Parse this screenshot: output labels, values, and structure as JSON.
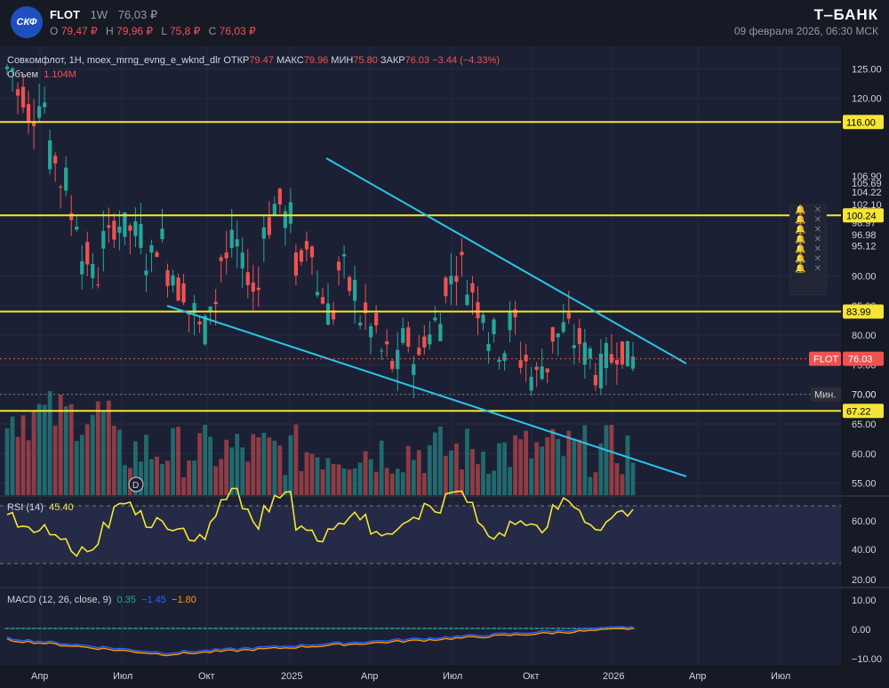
{
  "header": {
    "logo_text": "СКФ",
    "symbol": "FLOT",
    "timeframe": "1W",
    "last_price": "76,03 ₽",
    "ohlc": {
      "o_label": "O",
      "o": "79,47 ₽",
      "h_label": "H",
      "h": "79,96 ₽",
      "l_label": "L",
      "l": "75,8 ₽",
      "c_label": "C",
      "c": "76,03 ₽"
    },
    "brand": "Т‒БАНК",
    "datetime": "09 февраля 2026, 06:30 МСК"
  },
  "legend": {
    "title": "Совкомфлот, 1H, moex_mrng_evng_e_wknd_dlr",
    "open_label": "ОТКР",
    "open": "79.47",
    "high_label": "МАКС",
    "high": "79.96",
    "low_label": "МИН",
    "low": "75.80",
    "close_label": "ЗАКР",
    "close": "76.03",
    "change": "−3.44 (−4.33%)",
    "volume_label": "Объем",
    "volume": "1.104M"
  },
  "rsi": {
    "label": "RSI (14)",
    "value": "45.40",
    "axis": [
      "60.00",
      "40.00",
      "20.00"
    ]
  },
  "macd": {
    "label": "MACD (12, 26, close, 9)",
    "v1": "0.35",
    "v2": "−1.45",
    "v3": "−1.80",
    "axis": [
      "10.00",
      "0.00",
      "−10.00"
    ]
  },
  "price_axis": [
    "125.00",
    "120.00",
    "106.90",
    "105.69",
    "104.22",
    "102.10",
    "100.44",
    "98.97",
    "96.98",
    "95.12",
    "90.00",
    "85.00",
    "80.00",
    "75.00",
    "70.00",
    "65.00",
    "60.00",
    "55.00"
  ],
  "price_tags": [
    {
      "label": "116.00",
      "type": "level"
    },
    {
      "label": "100.24",
      "type": "level"
    },
    {
      "label": "83.99",
      "type": "level"
    },
    {
      "label": "67.22",
      "type": "level"
    },
    {
      "label": "76.03",
      "type": "last",
      "name": "FLOT"
    },
    {
      "label": "70.00",
      "type": "min",
      "name": "Мин."
    }
  ],
  "time_axis": [
    "Апр",
    "Июл",
    "Окт",
    "2025",
    "Апр",
    "Июл",
    "Окт",
    "2026",
    "Апр",
    "Июл"
  ],
  "dividend_marker": "D",
  "colors": {
    "up": "#26a69a",
    "down": "#ef5350",
    "level": "#f5e534",
    "trend": "#29c6e8",
    "rsi": "#f5e534",
    "macd": "#2962ff",
    "signal": "#ff9800"
  },
  "alerts_count": 7,
  "chart_data": {
    "type": "candlestick",
    "series": [
      {
        "name": "FLOT"
      }
    ],
    "horizontal_levels": [
      116.0,
      100.24,
      83.99,
      67.22
    ],
    "last_close": 76.03,
    "period_min": 70.0,
    "ylim": [
      53,
      127
    ],
    "closes_approx": [
      125,
      121,
      118,
      119,
      110,
      106,
      100,
      93,
      90,
      96,
      99,
      98,
      97,
      93,
      96,
      91,
      88,
      84,
      81,
      86,
      93,
      95,
      91,
      88,
      99,
      102,
      100,
      92,
      96,
      87,
      84,
      91,
      88,
      83,
      81,
      77,
      75,
      79,
      76,
      80,
      82,
      89,
      92,
      88,
      85,
      80,
      78,
      82,
      76,
      73,
      75,
      80,
      81,
      79,
      77,
      74,
      76,
      78,
      76
    ]
  }
}
